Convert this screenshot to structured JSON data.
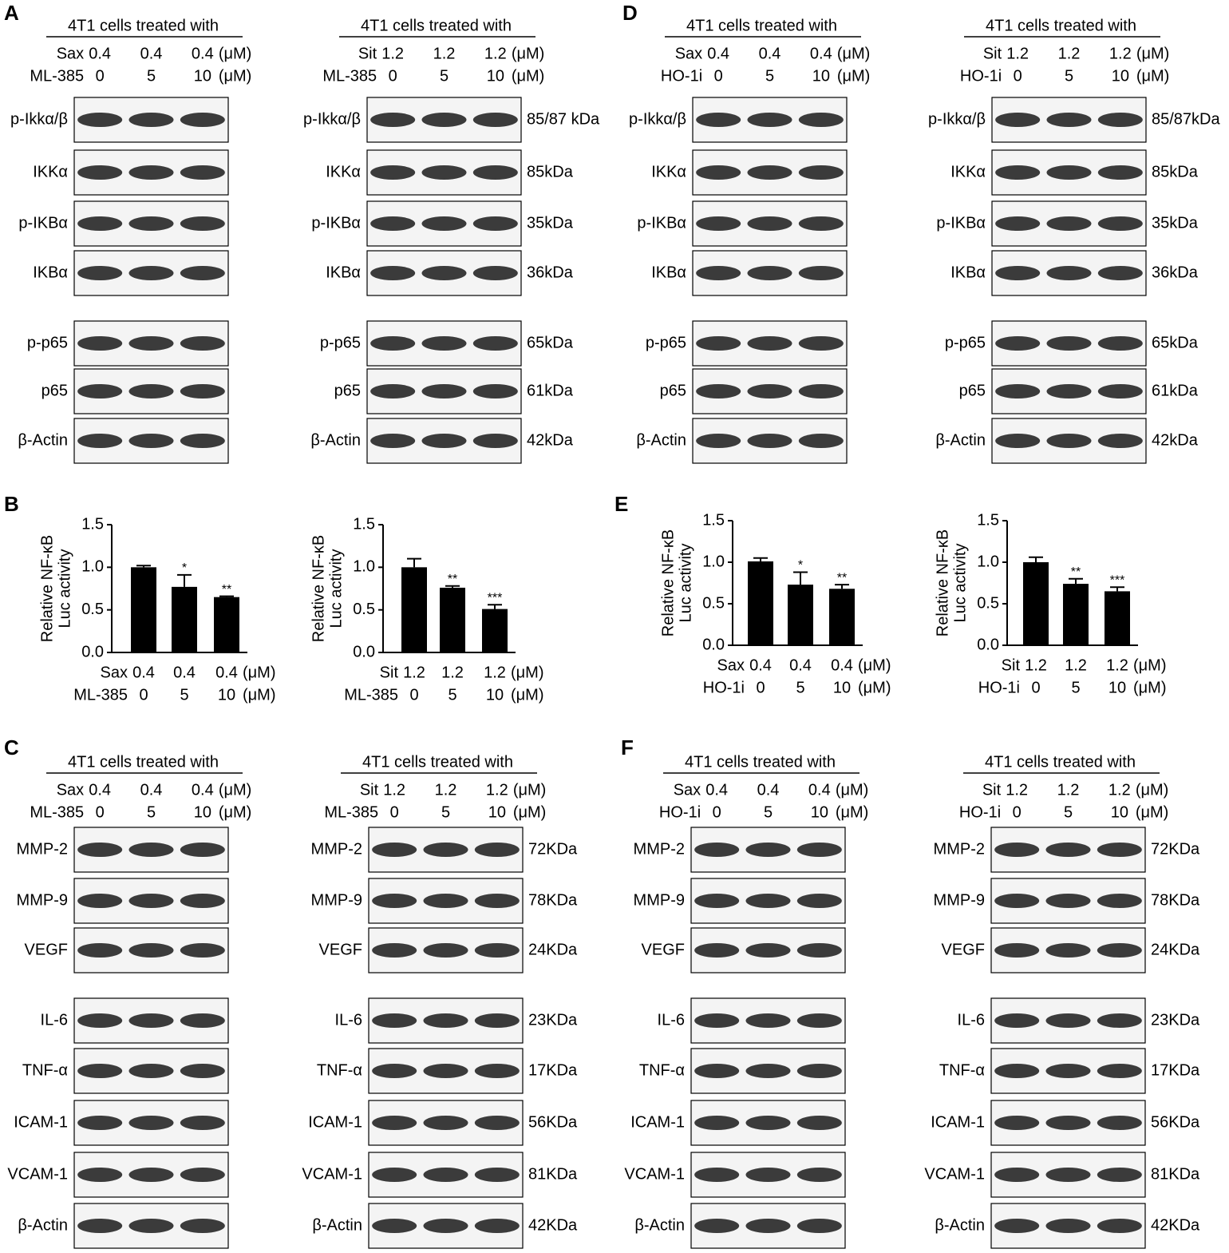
{
  "blot_panels": [
    {
      "letter": "A",
      "halves": [
        {
          "header": "4T1 cells treated with",
          "conditions": [
            {
              "label": "Sax",
              "values": [
                "0.4",
                "0.4",
                "0.4"
              ],
              "unit": "(μM)"
            },
            {
              "label": "ML-385",
              "values": [
                "0",
                "5",
                "10"
              ],
              "unit": "(μM)"
            }
          ],
          "rows": [
            {
              "label": "p-Ikkα/β"
            },
            {
              "label": "IKKα"
            },
            {
              "label": "p-IKBα"
            },
            {
              "label": "IKBα"
            },
            {
              "label": "p-p65"
            },
            {
              "label": "p65"
            },
            {
              "label": "β-Actin"
            }
          ]
        },
        {
          "header": "4T1 cells treated with",
          "conditions": [
            {
              "label": "Sit",
              "values": [
                "1.2",
                "1.2",
                "1.2"
              ],
              "unit": "(μM)"
            },
            {
              "label": "ML-385",
              "values": [
                "0",
                "5",
                "10"
              ],
              "unit": "(μM)"
            }
          ],
          "rows": [
            {
              "label": "p-Ikkα/β",
              "size": "85/87 kDa"
            },
            {
              "label": "IKKα",
              "size": "85kDa"
            },
            {
              "label": "p-IKBα",
              "size": "35kDa"
            },
            {
              "label": "IKBα",
              "size": "36kDa"
            },
            {
              "label": "p-p65",
              "size": "65kDa"
            },
            {
              "label": "p65",
              "size": "61kDa"
            },
            {
              "label": "β-Actin",
              "size": "42kDa"
            }
          ]
        }
      ]
    },
    {
      "letter": "C",
      "halves": [
        {
          "header": "4T1 cells treated with",
          "conditions": [
            {
              "label": "Sax",
              "values": [
                "0.4",
                "0.4",
                "0.4"
              ],
              "unit": "(μM)"
            },
            {
              "label": "ML-385",
              "values": [
                "0",
                "5",
                "10"
              ],
              "unit": "(μM)"
            }
          ],
          "rows": [
            {
              "label": "MMP-2"
            },
            {
              "label": "MMP-9"
            },
            {
              "label": "VEGF"
            },
            {
              "label": "IL-6"
            },
            {
              "label": "TNF-α"
            },
            {
              "label": "ICAM-1"
            },
            {
              "label": "VCAM-1"
            },
            {
              "label": "β-Actin"
            }
          ]
        },
        {
          "header": "4T1 cells treated with",
          "conditions": [
            {
              "label": "Sit",
              "values": [
                "1.2",
                "1.2",
                "1.2"
              ],
              "unit": "(μM)"
            },
            {
              "label": "ML-385",
              "values": [
                "0",
                "5",
                "10"
              ],
              "unit": "(μM)"
            }
          ],
          "rows": [
            {
              "label": "MMP-2",
              "size": "72KDa"
            },
            {
              "label": "MMP-9",
              "size": "78KDa"
            },
            {
              "label": "VEGF",
              "size": "24KDa"
            },
            {
              "label": "IL-6",
              "size": "23KDa"
            },
            {
              "label": "TNF-α",
              "size": "17KDa"
            },
            {
              "label": "ICAM-1",
              "size": "56KDa"
            },
            {
              "label": "VCAM-1",
              "size": "81KDa"
            },
            {
              "label": "β-Actin",
              "size": "42KDa"
            }
          ]
        }
      ]
    },
    {
      "letter": "D",
      "halves": [
        {
          "header": "4T1 cells treated with",
          "conditions": [
            {
              "label": "Sax",
              "values": [
                "0.4",
                "0.4",
                "0.4"
              ],
              "unit": "(μM)"
            },
            {
              "label": "HO-1i",
              "values": [
                "0",
                "5",
                "10"
              ],
              "unit": "(μM)"
            }
          ],
          "rows": [
            {
              "label": "p-Ikkα/β"
            },
            {
              "label": "IKKα"
            },
            {
              "label": "p-IKBα"
            },
            {
              "label": "IKBα"
            },
            {
              "label": "p-p65"
            },
            {
              "label": "p65"
            },
            {
              "label": "β-Actin"
            }
          ]
        },
        {
          "header": "4T1 cells treated with",
          "conditions": [
            {
              "label": "Sit",
              "values": [
                "1.2",
                "1.2",
                "1.2"
              ],
              "unit": "(μM)"
            },
            {
              "label": "HO-1i",
              "values": [
                "0",
                "5",
                "10"
              ],
              "unit": "(μM)"
            }
          ],
          "rows": [
            {
              "label": "p-Ikkα/β",
              "size": "85/87kDa"
            },
            {
              "label": "IKKα",
              "size": "85kDa"
            },
            {
              "label": "p-IKBα",
              "size": "35kDa"
            },
            {
              "label": "IKBα",
              "size": "36kDa"
            },
            {
              "label": "p-p65",
              "size": "65kDa"
            },
            {
              "label": "p65",
              "size": "61kDa"
            },
            {
              "label": "β-Actin",
              "size": "42kDa"
            }
          ]
        }
      ]
    },
    {
      "letter": "F",
      "halves": [
        {
          "header": "4T1 cells treated with",
          "conditions": [
            {
              "label": "Sax",
              "values": [
                "0.4",
                "0.4",
                "0.4"
              ],
              "unit": "(μM)"
            },
            {
              "label": "HO-1i",
              "values": [
                "0",
                "5",
                "10"
              ],
              "unit": "(μM)"
            }
          ],
          "rows": [
            {
              "label": "MMP-2"
            },
            {
              "label": "MMP-9"
            },
            {
              "label": "VEGF"
            },
            {
              "label": "IL-6"
            },
            {
              "label": "TNF-α"
            },
            {
              "label": "ICAM-1"
            },
            {
              "label": "VCAM-1"
            },
            {
              "label": "β-Actin"
            }
          ]
        },
        {
          "header": "4T1 cells treated with",
          "conditions": [
            {
              "label": "Sit",
              "values": [
                "1.2",
                "1.2",
                "1.2"
              ],
              "unit": "(μM)"
            },
            {
              "label": "HO-1i",
              "values": [
                "0",
                "5",
                "10"
              ],
              "unit": "(μM)"
            }
          ],
          "rows": [
            {
              "label": "MMP-2",
              "size": "72KDa"
            },
            {
              "label": "MMP-9",
              "size": "78KDa"
            },
            {
              "label": "VEGF",
              "size": "24KDa"
            },
            {
              "label": "IL-6",
              "size": "23KDa"
            },
            {
              "label": "TNF-α",
              "size": "17KDa"
            },
            {
              "label": "ICAM-1",
              "size": "56KDa"
            },
            {
              "label": "VCAM-1",
              "size": "81KDa"
            },
            {
              "label": "β-Actin",
              "size": "42KDa"
            }
          ]
        }
      ]
    }
  ],
  "chart_panels": [
    {
      "letter": "B"
    },
    {
      "letter": "E"
    }
  ],
  "chart_data": [
    {
      "type": "bar",
      "ylabel": [
        "Relative NF-κB",
        "Luc activity"
      ],
      "color": "#000000",
      "values": [
        1.0,
        0.77,
        0.65
      ],
      "errors": [
        0.02,
        0.14,
        0.01
      ],
      "annotations": [
        null,
        "*",
        "**"
      ],
      "ylim": [
        0,
        1.5
      ],
      "yticks": [
        {
          "value": 0,
          "label": "0.0"
        },
        {
          "value": 0.5,
          "label": "0.5"
        },
        {
          "value": 1,
          "label": "1.0"
        },
        {
          "value": 1.5,
          "label": "1.5"
        }
      ],
      "conditions": [
        {
          "label": "Sax",
          "values": [
            "0.4",
            "0.4",
            "0.4"
          ],
          "unit": "(μM)"
        },
        {
          "label": "ML-385",
          "values": [
            "0",
            "5",
            "10"
          ],
          "unit": "(μM)"
        }
      ]
    },
    {
      "type": "bar",
      "ylabel": [
        "Relative NF-κB",
        "Luc activity"
      ],
      "color": "#000000",
      "values": [
        1.0,
        0.76,
        0.51
      ],
      "errors": [
        0.1,
        0.02,
        0.05
      ],
      "annotations": [
        null,
        "**",
        "***"
      ],
      "ylim": [
        0,
        1.5
      ],
      "yticks": [
        {
          "value": 0,
          "label": "0.0"
        },
        {
          "value": 0.5,
          "label": "0.5"
        },
        {
          "value": 1,
          "label": "1.0"
        },
        {
          "value": 1.5,
          "label": "1.5"
        }
      ],
      "conditions": [
        {
          "label": "Sit",
          "values": [
            "1.2",
            "1.2",
            "1.2"
          ],
          "unit": "(μM)"
        },
        {
          "label": "ML-385",
          "values": [
            "0",
            "5",
            "10"
          ],
          "unit": "(μM)"
        }
      ]
    },
    {
      "type": "bar",
      "ylabel": [
        "Relative NF-κB",
        "Luc activity"
      ],
      "color": "#000000",
      "values": [
        1.01,
        0.73,
        0.68
      ],
      "errors": [
        0.04,
        0.15,
        0.05
      ],
      "annotations": [
        null,
        "*",
        "**"
      ],
      "ylim": [
        0,
        1.5
      ],
      "yticks": [
        {
          "value": 0,
          "label": "0.0"
        },
        {
          "value": 0.5,
          "label": "0.5"
        },
        {
          "value": 1,
          "label": "1.0"
        },
        {
          "value": 1.5,
          "label": "1.5"
        }
      ],
      "conditions": [
        {
          "label": "Sax",
          "values": [
            "0.4",
            "0.4",
            "0.4"
          ],
          "unit": "(μM)"
        },
        {
          "label": "HO-1i",
          "values": [
            "0",
            "5",
            "10"
          ],
          "unit": "(μM)"
        }
      ]
    },
    {
      "type": "bar",
      "ylabel": [
        "Relative NF-κB",
        "Luc activity"
      ],
      "color": "#000000",
      "values": [
        1.0,
        0.74,
        0.65
      ],
      "errors": [
        0.06,
        0.06,
        0.05
      ],
      "annotations": [
        null,
        "**",
        "***"
      ],
      "ylim": [
        0,
        1.5
      ],
      "yticks": [
        {
          "value": 0,
          "label": "0.0"
        },
        {
          "value": 0.5,
          "label": "0.5"
        },
        {
          "value": 1,
          "label": "1.0"
        },
        {
          "value": 1.5,
          "label": "1.5"
        }
      ],
      "conditions": [
        {
          "label": "Sit",
          "values": [
            "1.2",
            "1.2",
            "1.2"
          ],
          "unit": "(μM)"
        },
        {
          "label": "HO-1i",
          "values": [
            "0",
            "5",
            "10"
          ],
          "unit": "(μM)"
        }
      ]
    }
  ]
}
